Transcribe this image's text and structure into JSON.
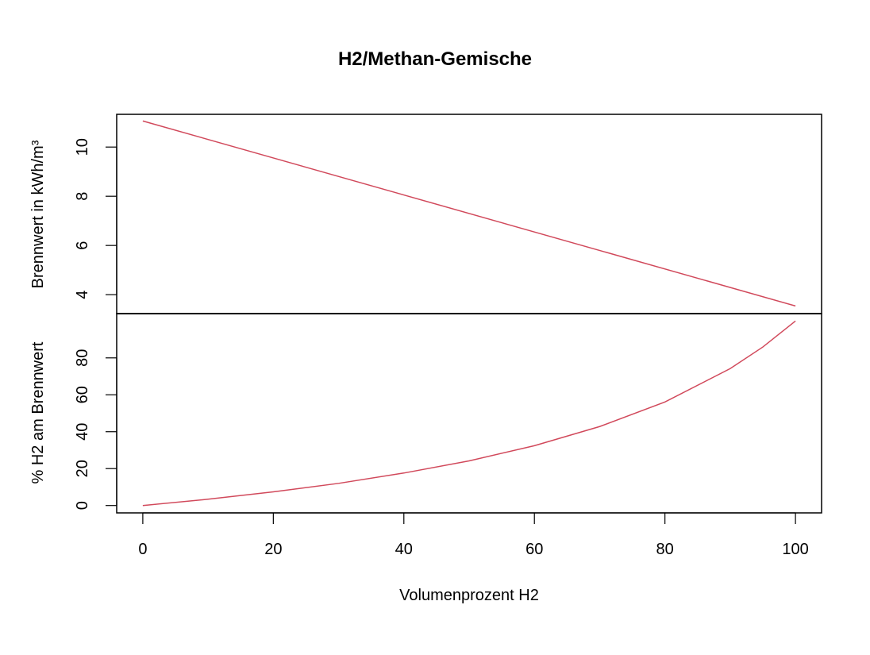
{
  "chart_data": {
    "type": "line",
    "title": "H2/Methan-Gemische",
    "xlabel": "Volumenprozent H2",
    "xlim": [
      -4,
      104
    ],
    "x_ticks": [
      0,
      20,
      40,
      60,
      80,
      100
    ],
    "colors": {
      "line": "#d1495b",
      "axis": "#000000"
    },
    "panels": [
      {
        "ylabel": "Brennwert in kWh/m³",
        "ylim": [
          3.23,
          11.33
        ],
        "y_ticks": [
          4,
          6,
          8,
          10
        ],
        "series": [
          {
            "x": [
              0,
              100
            ],
            "y": [
              11.06,
              3.54
            ]
          }
        ]
      },
      {
        "ylabel": "% H2 am Brennwert",
        "ylim": [
          -4,
          104
        ],
        "y_ticks": [
          0,
          20,
          40,
          60,
          80
        ],
        "series": [
          {
            "x": [
              0,
              10,
              20,
              30,
              40,
              50,
              60,
              70,
              80,
              90,
              95,
              100
            ],
            "y": [
              0,
              3.4,
              7.4,
              12.0,
              17.6,
              24.2,
              32.4,
              42.8,
              56.1,
              74.2,
              85.9,
              100
            ]
          }
        ]
      }
    ]
  }
}
